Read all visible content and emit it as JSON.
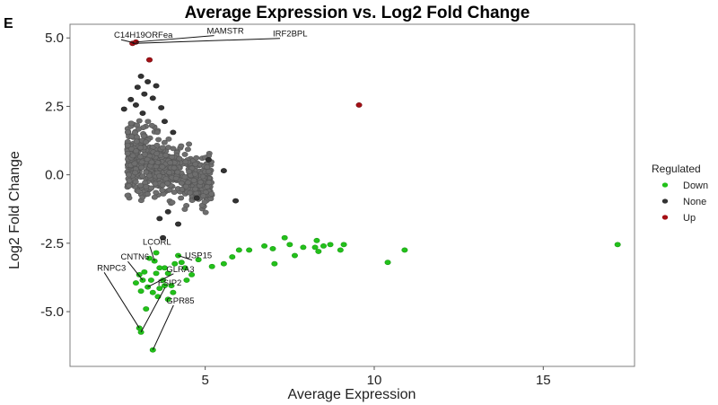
{
  "panel_letter": "E",
  "chart_data": {
    "type": "scatter",
    "title": "Average Expression vs. Log2 Fold Change",
    "xlabel": "Average Expression",
    "ylabel": "Log2 Fold Change",
    "xlim": [
      1.0,
      17.7
    ],
    "ylim": [
      -7.0,
      5.5
    ],
    "x_ticks": [
      5,
      10,
      15
    ],
    "y_ticks": [
      5.0,
      2.5,
      0.0,
      -2.5,
      -5.0
    ],
    "x_tick_labels": [
      "5",
      "10",
      "15"
    ],
    "y_tick_labels": [
      "5.0",
      "2.5",
      "0.0",
      "-2.5",
      "-5.0"
    ],
    "legend": {
      "title": "Regulated",
      "position": "right",
      "entries": [
        {
          "label": "Down",
          "color": "#22c11a"
        },
        {
          "label": "None",
          "color": "#333333"
        },
        {
          "label": "Up",
          "color": "#a50f15"
        }
      ]
    },
    "series": [
      {
        "name": "Up",
        "color": "#a50f15",
        "points": [
          [
            2.85,
            4.8
          ],
          [
            2.95,
            4.85
          ],
          [
            3.35,
            4.2
          ],
          [
            9.55,
            2.55
          ]
        ]
      },
      {
        "name": "Down",
        "color": "#22c11a",
        "points": [
          [
            17.2,
            -2.55
          ],
          [
            10.9,
            -2.75
          ],
          [
            10.4,
            -3.2
          ],
          [
            9.0,
            -2.75
          ],
          [
            9.1,
            -2.55
          ],
          [
            8.7,
            -2.55
          ],
          [
            8.5,
            -2.6
          ],
          [
            8.3,
            -2.4
          ],
          [
            8.25,
            -2.65
          ],
          [
            8.35,
            -2.8
          ],
          [
            7.9,
            -2.65
          ],
          [
            7.5,
            -2.55
          ],
          [
            7.35,
            -2.3
          ],
          [
            7.0,
            -2.7
          ],
          [
            7.05,
            -3.25
          ],
          [
            7.65,
            -2.95
          ],
          [
            6.75,
            -2.6
          ],
          [
            6.3,
            -2.75
          ],
          [
            6.0,
            -2.75
          ],
          [
            5.8,
            -3.0
          ],
          [
            5.55,
            -3.25
          ],
          [
            5.2,
            -3.35
          ],
          [
            4.8,
            -3.1
          ],
          [
            4.6,
            -3.65
          ],
          [
            4.45,
            -3.85
          ],
          [
            4.3,
            -3.2
          ],
          [
            4.2,
            -2.95
          ],
          [
            4.1,
            -3.25
          ],
          [
            4.0,
            -4.05
          ],
          [
            3.9,
            -3.6
          ],
          [
            3.8,
            -3.4
          ],
          [
            3.75,
            -3.85
          ],
          [
            3.65,
            -4.15
          ],
          [
            3.55,
            -3.6
          ],
          [
            3.5,
            -3.15
          ],
          [
            3.45,
            -4.3
          ],
          [
            3.4,
            -3.85
          ],
          [
            3.3,
            -4.1
          ],
          [
            3.2,
            -3.55
          ],
          [
            3.15,
            -3.85
          ],
          [
            3.1,
            -4.25
          ],
          [
            3.05,
            -3.65
          ],
          [
            2.95,
            -3.95
          ],
          [
            4.05,
            -4.3
          ],
          [
            3.6,
            -4.45
          ],
          [
            3.9,
            -4.55
          ],
          [
            3.25,
            -4.9
          ],
          [
            3.05,
            -5.6
          ],
          [
            3.1,
            -5.75
          ],
          [
            3.45,
            -6.4
          ],
          [
            3.35,
            -3.05
          ],
          [
            3.55,
            -2.85
          ],
          [
            3.65,
            -3.4
          ],
          [
            3.8,
            -4.05
          ],
          [
            4.4,
            -3.4
          ]
        ]
      }
    ],
    "none_cloud": {
      "name": "None",
      "color": "#333333",
      "fill_color": "#6e6e6e",
      "extreme_points": [
        [
          3.1,
          3.6
        ],
        [
          3.3,
          3.4
        ],
        [
          3.55,
          3.25
        ],
        [
          3.0,
          3.2
        ],
        [
          3.2,
          2.95
        ],
        [
          2.8,
          2.75
        ],
        [
          2.95,
          2.55
        ],
        [
          3.45,
          2.8
        ],
        [
          3.7,
          2.45
        ],
        [
          3.15,
          2.25
        ],
        [
          2.6,
          2.4
        ],
        [
          3.8,
          1.95
        ],
        [
          4.05,
          1.55
        ],
        [
          5.1,
          0.55
        ],
        [
          5.55,
          0.15
        ],
        [
          5.9,
          -0.95
        ],
        [
          4.75,
          -0.85
        ],
        [
          3.9,
          -1.35
        ],
        [
          3.65,
          -1.6
        ],
        [
          4.2,
          -1.8
        ],
        [
          3.75,
          -2.3
        ]
      ],
      "core_region": {
        "x_range": [
          2.7,
          5.2
        ],
        "y_center": 0.0,
        "y_halfwidth": 1.0
      }
    },
    "annotations": [
      {
        "label": "C14H19ORFea",
        "target": [
          2.9,
          4.82
        ],
        "text_at": [
          2.3,
          5.0
        ]
      },
      {
        "label": "MAMSTR",
        "target": [
          2.95,
          4.85
        ],
        "text_at": [
          5.05,
          5.15
        ]
      },
      {
        "label": "IRF2BPL",
        "target": [
          2.85,
          4.8
        ],
        "text_at": [
          7.0,
          5.05
        ]
      },
      {
        "label": "LCORL",
        "target": [
          3.5,
          -3.15
        ],
        "text_at": [
          3.15,
          -2.55
        ]
      },
      {
        "label": "CNTN6",
        "target": [
          3.15,
          -3.85
        ],
        "text_at": [
          2.5,
          -3.1
        ]
      },
      {
        "label": "USP15",
        "target": [
          4.2,
          -2.95
        ],
        "text_at": [
          4.4,
          -3.05
        ]
      },
      {
        "label": "RNPC3",
        "target": [
          3.05,
          -5.6
        ],
        "text_at": [
          1.8,
          -3.5
        ]
      },
      {
        "label": "GLRA3",
        "target": [
          3.3,
          -4.1
        ],
        "text_at": [
          3.85,
          -3.55
        ]
      },
      {
        "label": "FSIP2",
        "target": [
          3.1,
          -5.75
        ],
        "text_at": [
          3.6,
          -4.05
        ]
      },
      {
        "label": "GPR85",
        "target": [
          3.45,
          -6.4
        ],
        "text_at": [
          3.85,
          -4.7
        ]
      }
    ]
  }
}
